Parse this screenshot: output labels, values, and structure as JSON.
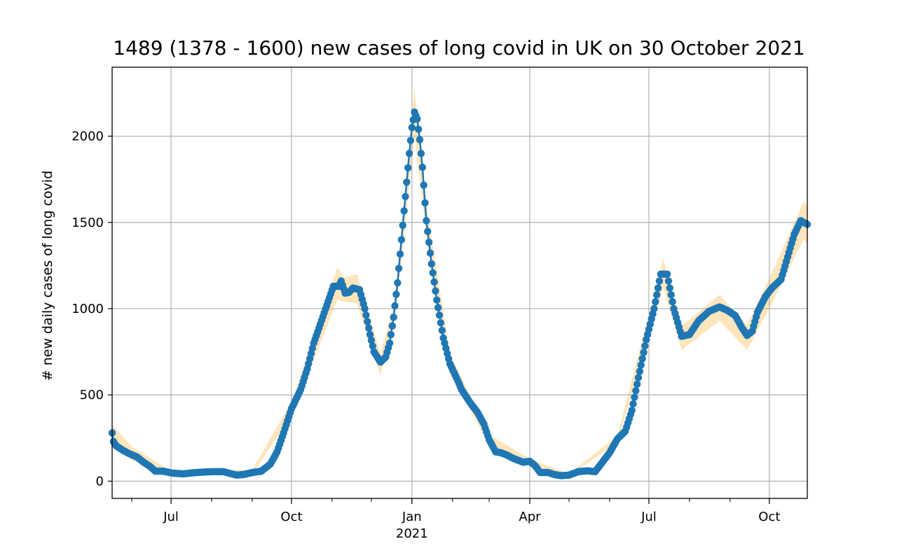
{
  "chart_data": {
    "type": "line",
    "title": "1489 (1378 - 1600) new cases of long covid in UK on 30 October 2021",
    "xlabel": "",
    "ylabel": "# new daily cases of long covid",
    "x_range": [
      "2020-05-17",
      "2021-10-30"
    ],
    "ylim": [
      -100,
      2400
    ],
    "y_ticks": [
      0,
      500,
      1000,
      1500,
      2000
    ],
    "x_ticks": [
      {
        "date": "2020-07-01",
        "label": "Jul",
        "sublabel": ""
      },
      {
        "date": "2020-10-01",
        "label": "Oct",
        "sublabel": ""
      },
      {
        "date": "2021-01-01",
        "label": "Jan",
        "sublabel": "2021"
      },
      {
        "date": "2021-04-01",
        "label": "Apr",
        "sublabel": ""
      },
      {
        "date": "2021-07-01",
        "label": "Jul",
        "sublabel": ""
      },
      {
        "date": "2021-10-01",
        "label": "Oct",
        "sublabel": ""
      }
    ],
    "grid": true,
    "legend": "none",
    "series": [
      {
        "points": [
          [
            "2020-05-17",
            280
          ],
          [
            "2020-05-18",
            230
          ],
          [
            "2020-05-20",
            205
          ],
          [
            "2020-05-25",
            180
          ],
          [
            "2020-05-30",
            160
          ],
          [
            "2020-06-05",
            140
          ],
          [
            "2020-06-10",
            110
          ],
          [
            "2020-06-15",
            85
          ],
          [
            "2020-06-19",
            58
          ],
          [
            "2020-06-25",
            58
          ],
          [
            "2020-07-01",
            48
          ],
          [
            "2020-07-10",
            42
          ],
          [
            "2020-07-20",
            50
          ],
          [
            "2020-08-01",
            55
          ],
          [
            "2020-08-10",
            55
          ],
          [
            "2020-08-20",
            35
          ],
          [
            "2020-08-25",
            38
          ],
          [
            "2020-09-01",
            50
          ],
          [
            "2020-09-08",
            58
          ],
          [
            "2020-09-15",
            100
          ],
          [
            "2020-09-20",
            170
          ],
          [
            "2020-09-25",
            280
          ],
          [
            "2020-10-01",
            420
          ],
          [
            "2020-10-08",
            530
          ],
          [
            "2020-10-13",
            650
          ],
          [
            "2020-10-18",
            800
          ],
          [
            "2020-10-23",
            910
          ],
          [
            "2020-10-28",
            1020
          ],
          [
            "2020-11-02",
            1130
          ],
          [
            "2020-11-06",
            1130
          ],
          [
            "2020-11-08",
            1160
          ],
          [
            "2020-11-11",
            1090
          ],
          [
            "2020-11-14",
            1095
          ],
          [
            "2020-11-17",
            1120
          ],
          [
            "2020-11-22",
            1110
          ],
          [
            "2020-11-26",
            1000
          ],
          [
            "2020-11-30",
            850
          ],
          [
            "2020-12-03",
            750
          ],
          [
            "2020-12-08",
            690
          ],
          [
            "2020-12-12",
            720
          ],
          [
            "2020-12-15",
            800
          ],
          [
            "2020-12-18",
            950
          ],
          [
            "2020-12-21",
            1150
          ],
          [
            "2020-12-24",
            1400
          ],
          [
            "2020-12-27",
            1650
          ],
          [
            "2020-12-30",
            1900
          ],
          [
            "2021-01-01",
            2050
          ],
          [
            "2021-01-03",
            2140
          ],
          [
            "2021-01-05",
            2100
          ],
          [
            "2021-01-07",
            1980
          ],
          [
            "2021-01-09",
            1820
          ],
          [
            "2021-01-12",
            1510
          ],
          [
            "2021-01-16",
            1260
          ],
          [
            "2021-01-20",
            1050
          ],
          [
            "2021-01-25",
            830
          ],
          [
            "2021-01-30",
            680
          ],
          [
            "2021-02-04",
            600
          ],
          [
            "2021-02-08",
            530
          ],
          [
            "2021-02-14",
            460
          ],
          [
            "2021-02-20",
            400
          ],
          [
            "2021-02-25",
            330
          ],
          [
            "2021-03-01",
            240
          ],
          [
            "2021-03-06",
            170
          ],
          [
            "2021-03-10",
            165
          ],
          [
            "2021-03-15",
            150
          ],
          [
            "2021-03-20",
            130
          ],
          [
            "2021-03-27",
            110
          ],
          [
            "2021-04-01",
            115
          ],
          [
            "2021-04-05",
            90
          ],
          [
            "2021-04-09",
            50
          ],
          [
            "2021-04-15",
            50
          ],
          [
            "2021-04-20",
            38
          ],
          [
            "2021-04-25",
            32
          ],
          [
            "2021-05-01",
            35
          ],
          [
            "2021-05-08",
            55
          ],
          [
            "2021-05-15",
            60
          ],
          [
            "2021-05-21",
            55
          ],
          [
            "2021-05-25",
            95
          ],
          [
            "2021-06-01",
            165
          ],
          [
            "2021-06-07",
            245
          ],
          [
            "2021-06-13",
            290
          ],
          [
            "2021-06-18",
            410
          ],
          [
            "2021-06-23",
            600
          ],
          [
            "2021-06-29",
            820
          ],
          [
            "2021-07-05",
            1000
          ],
          [
            "2021-07-10",
            1200
          ],
          [
            "2021-07-15",
            1200
          ],
          [
            "2021-07-20",
            1000
          ],
          [
            "2021-07-26",
            840
          ],
          [
            "2021-08-01",
            850
          ],
          [
            "2021-08-08",
            930
          ],
          [
            "2021-08-16",
            985
          ],
          [
            "2021-08-24",
            1010
          ],
          [
            "2021-08-30",
            990
          ],
          [
            "2021-09-05",
            960
          ],
          [
            "2021-09-10",
            890
          ],
          [
            "2021-09-14",
            845
          ],
          [
            "2021-09-18",
            870
          ],
          [
            "2021-09-22",
            980
          ],
          [
            "2021-09-28",
            1070
          ],
          [
            "2021-10-03",
            1120
          ],
          [
            "2021-10-10",
            1170
          ],
          [
            "2021-10-15",
            1300
          ],
          [
            "2021-10-20",
            1430
          ],
          [
            "2021-10-25",
            1510
          ],
          [
            "2021-10-30",
            1489
          ]
        ],
        "upper": [
          [
            "2020-05-17",
            330
          ],
          [
            "2020-06-01",
            200
          ],
          [
            "2020-07-01",
            60
          ],
          [
            "2020-09-01",
            65
          ],
          [
            "2020-10-01",
            460
          ],
          [
            "2020-10-20",
            880
          ],
          [
            "2020-11-05",
            1240
          ],
          [
            "2020-11-10",
            1180
          ],
          [
            "2020-11-20",
            1200
          ],
          [
            "2020-12-08",
            740
          ],
          [
            "2020-12-20",
            1080
          ],
          [
            "2021-01-03",
            2280
          ],
          [
            "2021-01-12",
            1600
          ],
          [
            "2021-01-30",
            740
          ],
          [
            "2021-03-01",
            270
          ],
          [
            "2021-04-01",
            130
          ],
          [
            "2021-05-01",
            42
          ],
          [
            "2021-06-07",
            265
          ],
          [
            "2021-07-12",
            1290
          ],
          [
            "2021-07-26",
            900
          ],
          [
            "2021-08-24",
            1080
          ],
          [
            "2021-09-14",
            905
          ],
          [
            "2021-10-03",
            1210
          ],
          [
            "2021-10-27",
            1620
          ],
          [
            "2021-10-30",
            1600
          ]
        ],
        "lower": [
          [
            "2020-05-17",
            230
          ],
          [
            "2020-06-01",
            120
          ],
          [
            "2020-07-01",
            36
          ],
          [
            "2020-09-01",
            40
          ],
          [
            "2020-10-01",
            380
          ],
          [
            "2020-10-20",
            740
          ],
          [
            "2020-11-05",
            1050
          ],
          [
            "2020-11-10",
            1040
          ],
          [
            "2020-11-20",
            1030
          ],
          [
            "2020-12-08",
            610
          ],
          [
            "2020-12-20",
            1000
          ],
          [
            "2021-01-03",
            2000
          ],
          [
            "2021-01-12",
            1420
          ],
          [
            "2021-01-30",
            620
          ],
          [
            "2021-03-01",
            215
          ],
          [
            "2021-04-01",
            100
          ],
          [
            "2021-05-01",
            28
          ],
          [
            "2021-06-07",
            225
          ],
          [
            "2021-07-12",
            1120
          ],
          [
            "2021-07-26",
            760
          ],
          [
            "2021-08-24",
            930
          ],
          [
            "2021-09-14",
            760
          ],
          [
            "2021-10-03",
            1030
          ],
          [
            "2021-10-27",
            1400
          ],
          [
            "2021-10-30",
            1378
          ]
        ]
      }
    ],
    "colors": {
      "line": "#1f77b4",
      "band": "#ffe0b0",
      "grid": "#b0b0b0"
    }
  }
}
